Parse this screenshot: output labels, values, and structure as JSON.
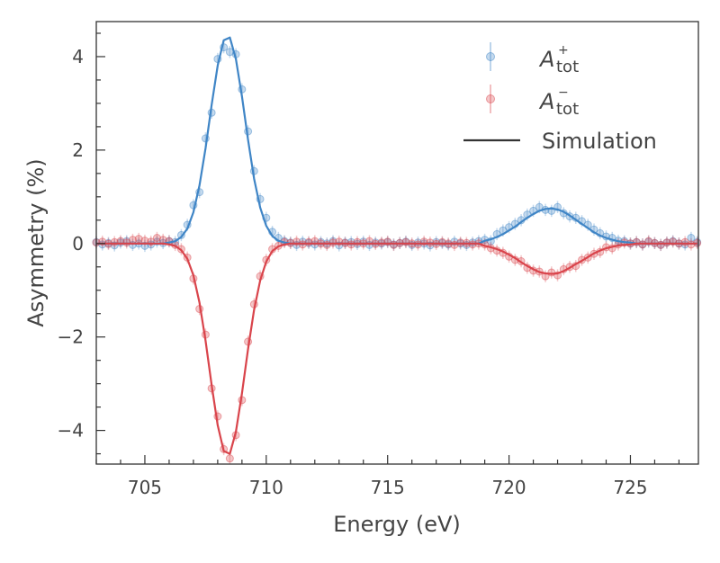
{
  "chart_data": {
    "type": "scatter",
    "title": "",
    "xlabel": "Energy (eV)",
    "ylabel": "Asymmetry (%)",
    "xlim": [
      703,
      727.8
    ],
    "ylim": [
      -4.72,
      4.75
    ],
    "xticks": [
      705,
      710,
      715,
      720,
      725
    ],
    "xtick_labels": [
      "705",
      "710",
      "715",
      "720",
      "725"
    ],
    "xminor_step": 1,
    "yticks": [
      -4,
      -2,
      0,
      2,
      4
    ],
    "ytick_labels": [
      "−4",
      "−2",
      "0",
      "2",
      "4"
    ],
    "yminor_step": 0.5,
    "grid": false,
    "legend_position": "top-right",
    "legend": [
      {
        "symbol": "A",
        "subscript": "tot",
        "superscript": "+",
        "kind": "errorbar",
        "color": "#3f85c6"
      },
      {
        "symbol": "A",
        "subscript": "tot",
        "superscript": "−",
        "kind": "errorbar",
        "color": "#d9444b"
      },
      {
        "label": "Simulation",
        "kind": "line",
        "color": "#333333"
      }
    ],
    "x": [
      703,
      703.25,
      703.5,
      703.75,
      704,
      704.25,
      704.5,
      704.75,
      705,
      705.25,
      705.5,
      705.75,
      706,
      706.25,
      706.5,
      706.75,
      707,
      707.25,
      707.5,
      707.75,
      708,
      708.25,
      708.5,
      708.75,
      709,
      709.25,
      709.5,
      709.75,
      710,
      710.25,
      710.5,
      710.75,
      711,
      711.25,
      711.5,
      711.75,
      712,
      712.25,
      712.5,
      712.75,
      713,
      713.25,
      713.5,
      713.75,
      714,
      714.25,
      714.5,
      714.75,
      715,
      715.25,
      715.5,
      715.75,
      716,
      716.25,
      716.5,
      716.75,
      717,
      717.25,
      717.5,
      717.75,
      718,
      718.25,
      718.5,
      718.75,
      719,
      719.25,
      719.5,
      719.75,
      720,
      720.25,
      720.5,
      720.75,
      721,
      721.25,
      721.5,
      721.75,
      722,
      722.25,
      722.5,
      722.75,
      723,
      723.25,
      723.5,
      723.75,
      724,
      724.25,
      724.5,
      724.75,
      725,
      725.25,
      725.5,
      725.75,
      726,
      726.25,
      726.5,
      726.75,
      727,
      727.25,
      727.5,
      727.75
    ],
    "error": 0.13,
    "series": [
      {
        "name": "A_tot+",
        "color": "#3f85c6",
        "values": [
          0.03,
          -0.02,
          0.01,
          -0.04,
          0.02,
          0.05,
          -0.03,
          0.0,
          -0.05,
          -0.02,
          0.04,
          0.01,
          0.05,
          0.03,
          0.18,
          0.4,
          0.82,
          1.1,
          2.25,
          2.8,
          3.95,
          4.2,
          4.1,
          4.05,
          3.3,
          2.4,
          1.55,
          0.95,
          0.55,
          0.25,
          0.12,
          0.05,
          0.02,
          -0.03,
          0.04,
          0.01,
          -0.02,
          0.03,
          0.0,
          0.05,
          -0.04,
          0.02,
          0.03,
          -0.01,
          0.04,
          -0.03,
          0.02,
          0.0,
          0.03,
          -0.02,
          0.01,
          0.04,
          -0.03,
          0.02,
          0.0,
          -0.04,
          0.03,
          0.01,
          -0.02,
          0.04,
          0.0,
          -0.03,
          0.02,
          0.05,
          0.08,
          0.05,
          0.2,
          0.28,
          0.35,
          0.42,
          0.5,
          0.62,
          0.7,
          0.78,
          0.72,
          0.7,
          0.78,
          0.65,
          0.58,
          0.55,
          0.48,
          0.4,
          0.3,
          0.22,
          0.15,
          0.12,
          0.06,
          0.05,
          0.0,
          0.03,
          -0.02,
          0.04,
          0.01,
          -0.03,
          0.02,
          0.05,
          0.0,
          -0.02,
          0.12,
          0.03
        ],
        "simulation": [
          0,
          0,
          0,
          0,
          0,
          0,
          0,
          0,
          0,
          0,
          0,
          0,
          0.02,
          0.05,
          0.14,
          0.32,
          0.67,
          1.24,
          2.04,
          2.96,
          3.81,
          4.35,
          4.41,
          3.95,
          3.14,
          2.22,
          1.39,
          0.77,
          0.38,
          0.16,
          0.06,
          0.02,
          0,
          0,
          0,
          0,
          0,
          0,
          0,
          0,
          0,
          0,
          0,
          0,
          0,
          0,
          0,
          0,
          0,
          0,
          0,
          0,
          0,
          0,
          0,
          0,
          0,
          0,
          0,
          0,
          0,
          0,
          0,
          0,
          0.06,
          0.09,
          0.14,
          0.2,
          0.28,
          0.36,
          0.46,
          0.55,
          0.63,
          0.7,
          0.74,
          0.75,
          0.73,
          0.68,
          0.6,
          0.51,
          0.42,
          0.33,
          0.24,
          0.17,
          0.12,
          0.08,
          0.05,
          0.03,
          0.02,
          0,
          0,
          0,
          0,
          0,
          0,
          0,
          0,
          0,
          0,
          0
        ]
      },
      {
        "name": "A_tot-",
        "color": "#d9444b",
        "values": [
          0.02,
          0.04,
          -0.01,
          0.03,
          0.05,
          0.02,
          0.08,
          0.1,
          0.06,
          0.04,
          0.12,
          0.08,
          0.05,
          -0.03,
          -0.12,
          -0.3,
          -0.75,
          -1.4,
          -1.95,
          -3.1,
          -3.7,
          -4.4,
          -4.6,
          -4.1,
          -3.35,
          -2.1,
          -1.3,
          -0.7,
          -0.35,
          -0.12,
          -0.05,
          0.03,
          0.01,
          0.04,
          -0.02,
          0.03,
          0.05,
          0.0,
          -0.03,
          0.02,
          0.04,
          0.01,
          -0.02,
          0.03,
          0.0,
          0.05,
          -0.01,
          0.02,
          0.04,
          -0.03,
          0.01,
          0.03,
          0.0,
          -0.02,
          0.04,
          0.02,
          -0.01,
          0.03,
          0.0,
          -0.03,
          0.02,
          0.01,
          -0.02,
          0.0,
          -0.02,
          -0.1,
          -0.15,
          -0.2,
          -0.28,
          -0.35,
          -0.38,
          -0.52,
          -0.58,
          -0.6,
          -0.7,
          -0.62,
          -0.68,
          -0.55,
          -0.5,
          -0.48,
          -0.35,
          -0.3,
          -0.22,
          -0.18,
          -0.08,
          -0.1,
          -0.02,
          0.02,
          0.0,
          0.03,
          -0.02,
          0.05,
          0.01,
          -0.03,
          0.02,
          0.04,
          0.0,
          0.03,
          -0.02,
          0.01
        ],
        "simulation": [
          0,
          0,
          0,
          0,
          0,
          0,
          0,
          0,
          0,
          0,
          0,
          0,
          -0.02,
          -0.05,
          -0.14,
          -0.33,
          -0.68,
          -1.26,
          -2.08,
          -3.02,
          -3.89,
          -4.44,
          -4.5,
          -4.03,
          -3.2,
          -2.26,
          -1.42,
          -0.79,
          -0.39,
          -0.16,
          -0.06,
          -0.02,
          0,
          0,
          0,
          0,
          0,
          0,
          0,
          0,
          0,
          0,
          0,
          0,
          0,
          0,
          0,
          0,
          0,
          0,
          0,
          0,
          0,
          0,
          0,
          0,
          0,
          0,
          0,
          0,
          0,
          0,
          0,
          0,
          -0.05,
          -0.08,
          -0.12,
          -0.17,
          -0.24,
          -0.31,
          -0.4,
          -0.48,
          -0.55,
          -0.61,
          -0.64,
          -0.65,
          -0.64,
          -0.59,
          -0.52,
          -0.44,
          -0.37,
          -0.29,
          -0.21,
          -0.15,
          -0.1,
          -0.07,
          -0.04,
          -0.03,
          -0.02,
          0,
          0,
          0,
          0,
          0,
          0,
          0,
          0,
          0,
          0,
          0
        ]
      }
    ]
  }
}
